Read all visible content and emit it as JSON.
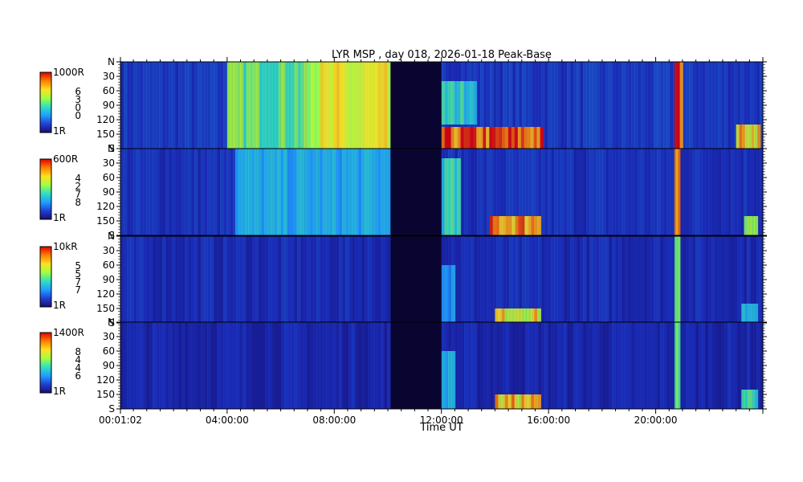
{
  "chart_data": {
    "type": "heatmap",
    "title": "LYR MSP , day 018, 2026-01-18 Peak-Base",
    "xlabel": "Time UT",
    "x_ticks": [
      "00:01:02",
      "04:00:00",
      "08:00:00",
      "12:00:00",
      "16:00:00",
      "20:00:00"
    ],
    "x_tick_hours": [
      0.017,
      4,
      8,
      12,
      16,
      20
    ],
    "xlim_hours": [
      0.017,
      24
    ],
    "data_gap_hours": [
      10.1,
      12.0
    ],
    "y_ticks_top": [
      "N",
      "30",
      "60",
      "90",
      "120",
      "150",
      "S"
    ],
    "y_ticks": [
      "30",
      "60",
      "90",
      "120",
      "150",
      "S"
    ],
    "y_tick_values": [
      0,
      30,
      60,
      90,
      120,
      150,
      180
    ],
    "ylim_deg": [
      0,
      180
    ],
    "panels": [
      {
        "colorbar_top": "1000R",
        "colorbar_bottom": "1R",
        "colorbar_mid": [
          "6",
          "3",
          "0",
          "0"
        ],
        "events": [
          {
            "start": 4.0,
            "end": 10.1,
            "lat_min": 0,
            "lat_max": 180,
            "level": 0.55
          },
          {
            "start": 7.0,
            "end": 10.1,
            "lat_min": 0,
            "lat_max": 180,
            "level": 0.7
          },
          {
            "start": 12.0,
            "end": 15.8,
            "lat_min": 135,
            "lat_max": 180,
            "level": 0.95
          },
          {
            "start": 12.0,
            "end": 13.3,
            "lat_min": 40,
            "lat_max": 130,
            "level": 0.45
          },
          {
            "start": 20.7,
            "end": 21.0,
            "lat_min": 0,
            "lat_max": 180,
            "level": 1.0
          },
          {
            "start": 23.0,
            "end": 23.9,
            "lat_min": 130,
            "lat_max": 180,
            "level": 0.8
          }
        ]
      },
      {
        "colorbar_top": "600R",
        "colorbar_bottom": "1R",
        "colorbar_mid": [
          "4",
          "2",
          "7",
          "8"
        ],
        "events": [
          {
            "start": 4.3,
            "end": 10.1,
            "lat_min": 0,
            "lat_max": 180,
            "level": 0.35
          },
          {
            "start": 12.0,
            "end": 12.7,
            "lat_min": 20,
            "lat_max": 180,
            "level": 0.45
          },
          {
            "start": 13.8,
            "end": 15.7,
            "lat_min": 140,
            "lat_max": 180,
            "level": 0.9
          },
          {
            "start": 20.7,
            "end": 20.9,
            "lat_min": 0,
            "lat_max": 180,
            "level": 1.0
          },
          {
            "start": 23.3,
            "end": 23.8,
            "lat_min": 140,
            "lat_max": 180,
            "level": 0.6
          }
        ]
      },
      {
        "colorbar_top": "10kR",
        "colorbar_bottom": "1R",
        "colorbar_mid": [
          "5",
          "5",
          "7",
          "7"
        ],
        "events": [
          {
            "start": 14.0,
            "end": 15.7,
            "lat_min": 150,
            "lat_max": 180,
            "level": 0.75
          },
          {
            "start": 12.0,
            "end": 12.5,
            "lat_min": 60,
            "lat_max": 180,
            "level": 0.3
          },
          {
            "start": 20.7,
            "end": 20.9,
            "lat_min": 0,
            "lat_max": 180,
            "level": 0.5
          },
          {
            "start": 23.2,
            "end": 23.8,
            "lat_min": 140,
            "lat_max": 180,
            "level": 0.4
          }
        ]
      },
      {
        "colorbar_top": "1400R",
        "colorbar_bottom": "1R",
        "colorbar_mid": [
          "8",
          "4",
          "4",
          "6"
        ],
        "events": [
          {
            "start": 14.0,
            "end": 15.7,
            "lat_min": 150,
            "lat_max": 180,
            "level": 0.8
          },
          {
            "start": 12.0,
            "end": 12.5,
            "lat_min": 60,
            "lat_max": 180,
            "level": 0.35
          },
          {
            "start": 20.7,
            "end": 20.9,
            "lat_min": 0,
            "lat_max": 180,
            "level": 0.6
          },
          {
            "start": 23.2,
            "end": 23.8,
            "lat_min": 140,
            "lat_max": 180,
            "level": 0.5
          }
        ]
      }
    ],
    "colormap": [
      "#1a0f6e",
      "#2040d8",
      "#20a0ff",
      "#30e0c0",
      "#a0ff40",
      "#ffe020",
      "#ff8000",
      "#e00000"
    ],
    "gap_color": "#0a0530",
    "background_color": "#12128a"
  }
}
